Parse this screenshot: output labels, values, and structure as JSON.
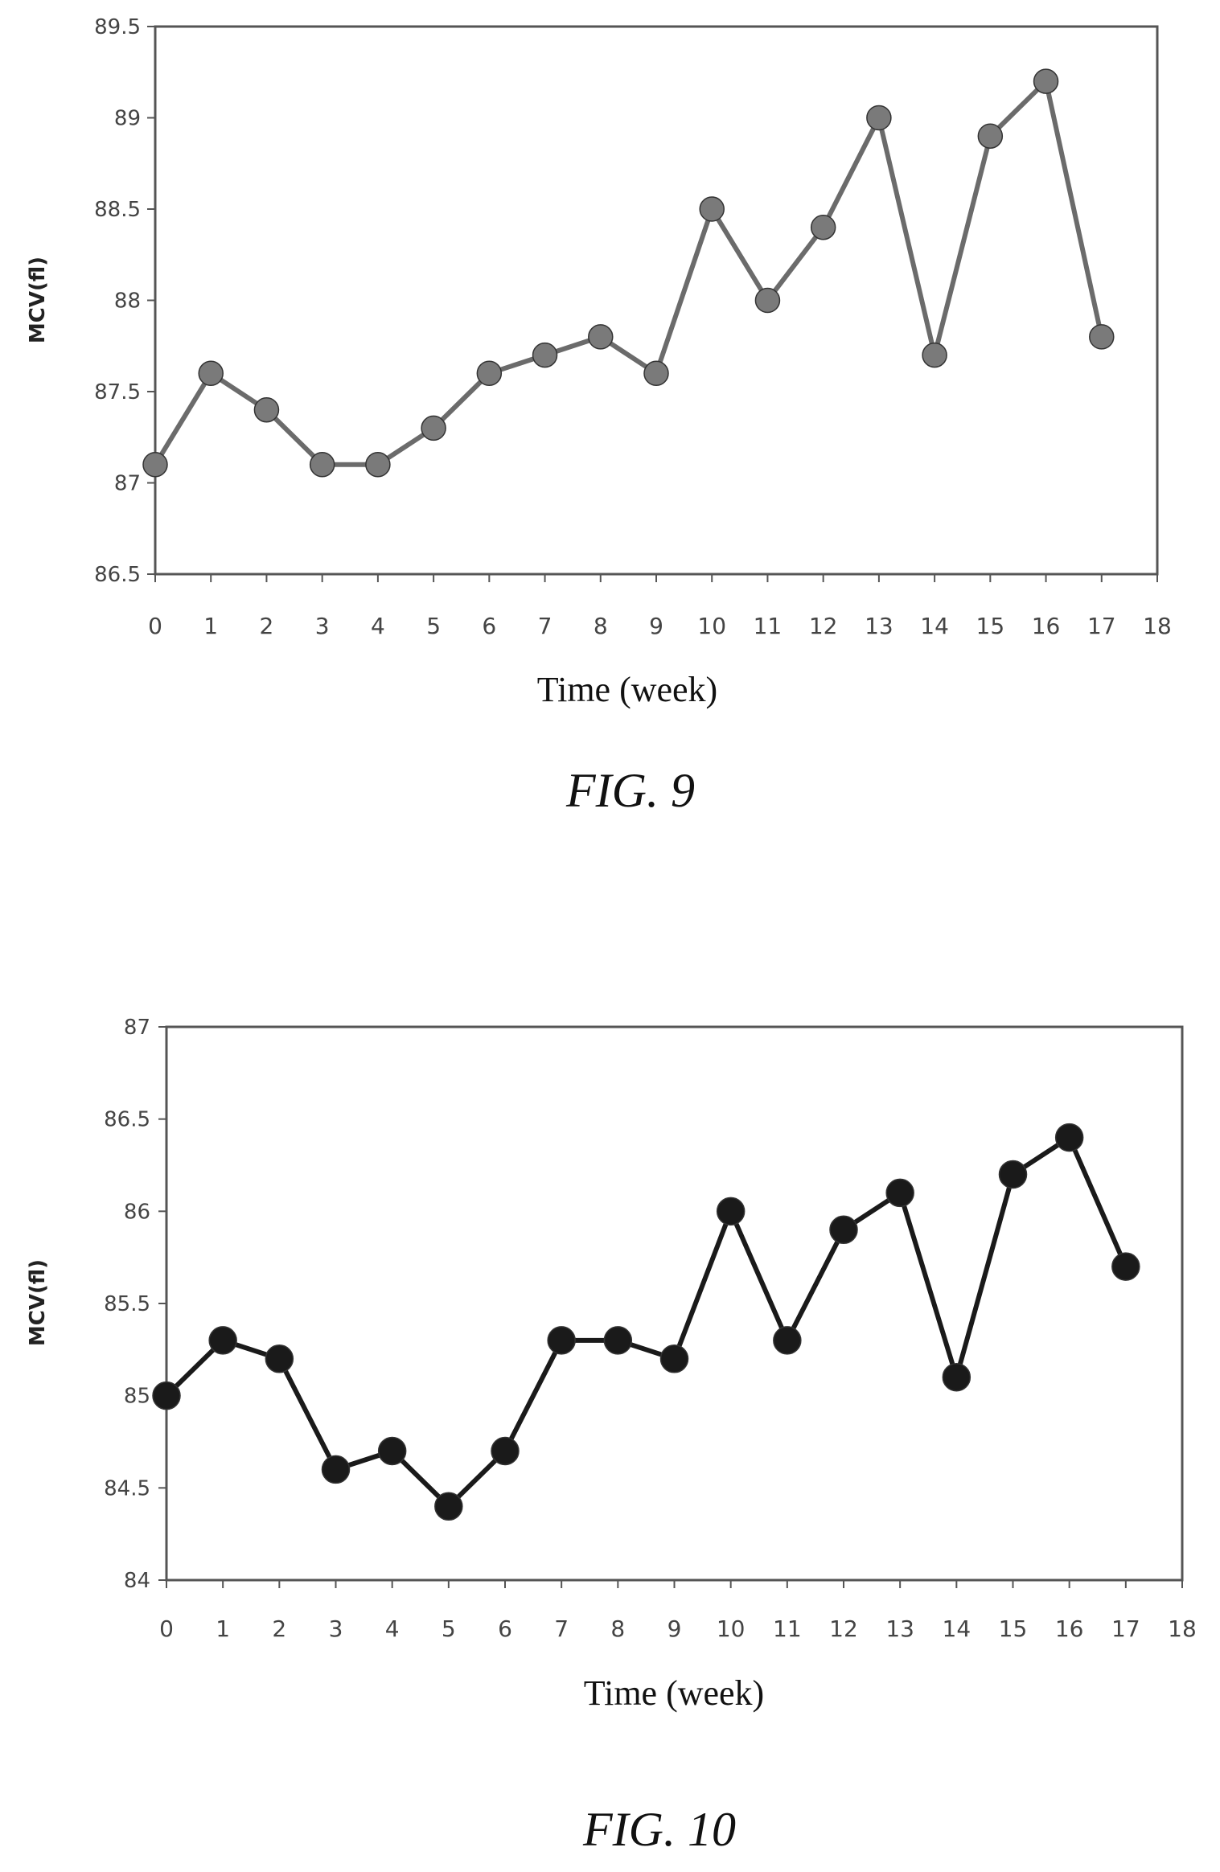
{
  "chart_data": [
    {
      "type": "line",
      "caption": "FIG. 9",
      "xlabel": "Time (week)",
      "ylabel": "MCV(fl)",
      "x_ticks": [
        "0",
        "1",
        "2",
        "3",
        "4",
        "5",
        "6",
        "7",
        "8",
        "9",
        "10",
        "11",
        "12",
        "13",
        "14",
        "15",
        "16",
        "17",
        "18"
      ],
      "y_ticks": [
        "86.5",
        "87",
        "87.5",
        "88",
        "88.5",
        "89",
        "89.5"
      ],
      "xlim": [
        0,
        18
      ],
      "ylim": [
        86.5,
        89.5
      ],
      "grid": false,
      "colors": {
        "line": "#6b6b6b",
        "marker": "#7a7a7a"
      },
      "series": [
        {
          "x": [
            0,
            1,
            2,
            3,
            4,
            5,
            6,
            7,
            8,
            9,
            10,
            11,
            12,
            13,
            14,
            15,
            16,
            17
          ],
          "values": [
            87.1,
            87.6,
            87.4,
            87.1,
            87.1,
            87.3,
            87.6,
            87.7,
            87.8,
            87.6,
            88.5,
            88.0,
            88.4,
            89.0,
            87.7,
            88.9,
            89.2,
            87.8
          ]
        }
      ]
    },
    {
      "type": "line",
      "caption": "FIG. 10",
      "xlabel": "Time (week)",
      "ylabel": "MCV(fl)",
      "x_ticks": [
        "0",
        "1",
        "2",
        "3",
        "4",
        "5",
        "6",
        "7",
        "8",
        "9",
        "10",
        "11",
        "12",
        "13",
        "14",
        "15",
        "16",
        "17",
        "18"
      ],
      "y_ticks": [
        "84",
        "84.5",
        "85",
        "85.5",
        "86",
        "86.5",
        "87"
      ],
      "xlim": [
        0,
        18
      ],
      "ylim": [
        84,
        87
      ],
      "grid": false,
      "colors": {
        "line": "#1a1a1a",
        "marker": "#1a1a1a"
      },
      "series": [
        {
          "x": [
            0,
            1,
            2,
            3,
            4,
            5,
            6,
            7,
            8,
            9,
            10,
            11,
            12,
            13,
            14,
            15,
            16,
            17
          ],
          "values": [
            85.0,
            85.3,
            85.2,
            84.6,
            84.7,
            84.4,
            84.7,
            85.3,
            85.3,
            85.2,
            86.0,
            85.3,
            85.9,
            86.1,
            85.1,
            86.2,
            86.4,
            85.7
          ]
        }
      ]
    }
  ]
}
